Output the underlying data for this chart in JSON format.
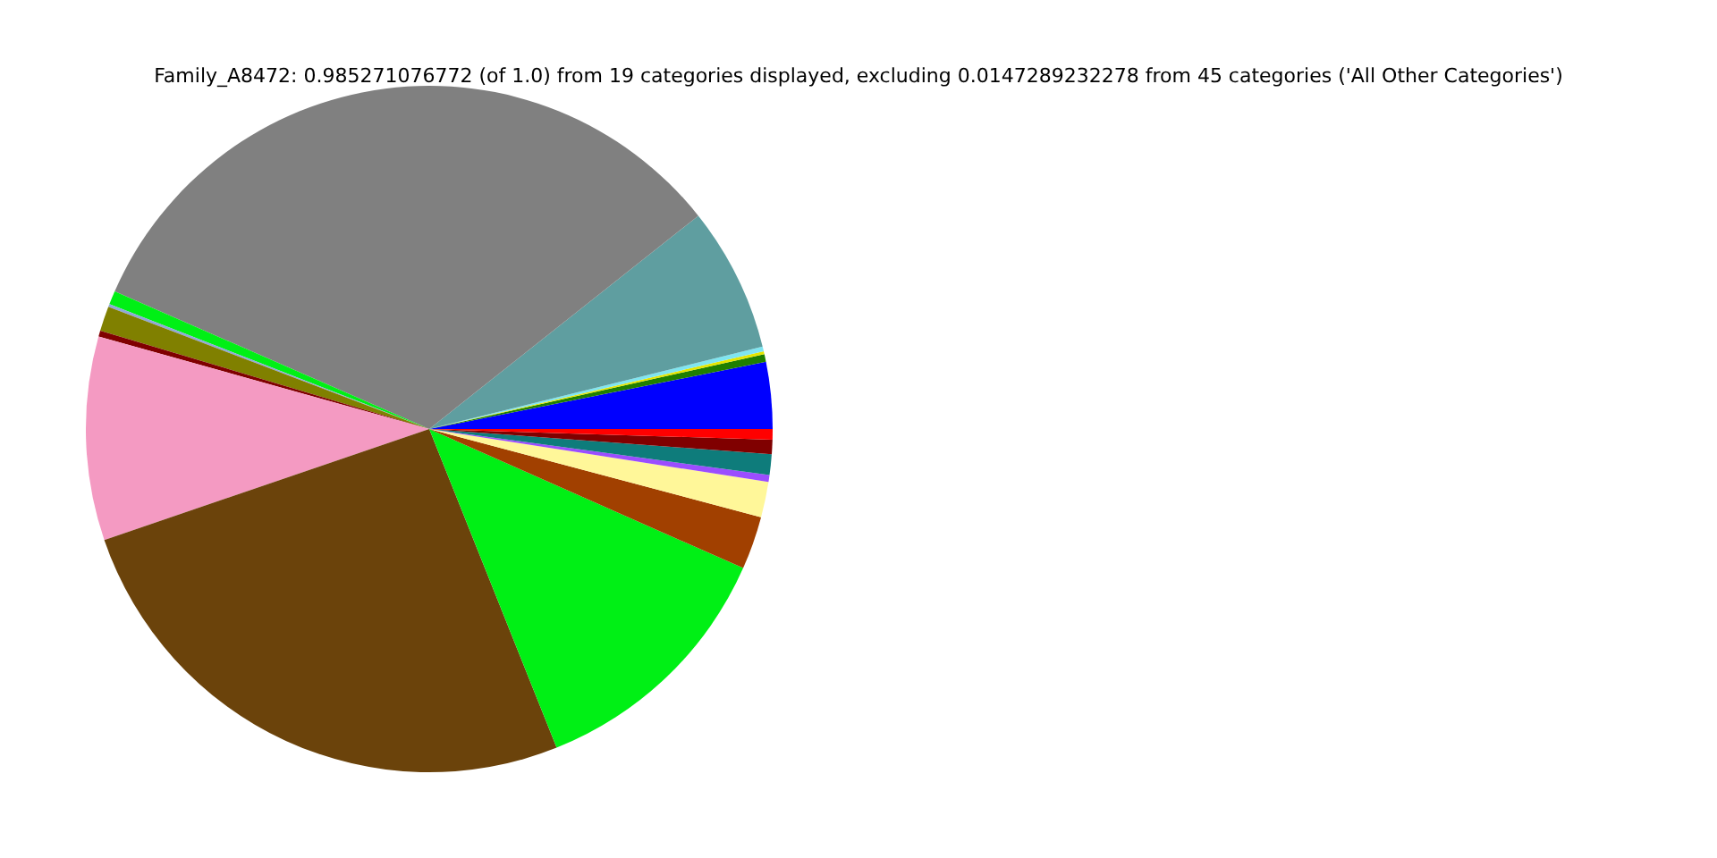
{
  "chart_data": {
    "type": "pie",
    "title": "Family_A8472: 0.985271076772 (of 1.0) from 19 categories displayed, excluding 0.0147289232278 from 45 categories ('All Other Categories')",
    "categories": [
      null,
      null,
      null,
      null,
      null,
      null,
      null,
      null,
      null,
      null,
      null,
      null,
      null,
      null,
      null,
      null,
      null,
      null,
      null
    ],
    "values": [
      3.14,
      0.36,
      0.14,
      0.22,
      6.81,
      32.76,
      0.64,
      0.14,
      1.17,
      0.28,
      9.58,
      25.81,
      12.31,
      2.5,
      1.67,
      0.33,
      0.97,
      0.67,
      0.5
    ],
    "colors": [
      "#0000ff",
      "#1f7f00",
      "#e6e600",
      "#7fe5f0",
      "#5f9ea0",
      "#808080",
      "#00f015",
      "#8fa8d8",
      "#808000",
      "#800000",
      "#f49ac2",
      "#6b430b",
      "#00f015",
      "#a14000",
      "#fff799",
      "#9b4dff",
      "#0e7c7b",
      "#800000",
      "#ff0000"
    ]
  }
}
